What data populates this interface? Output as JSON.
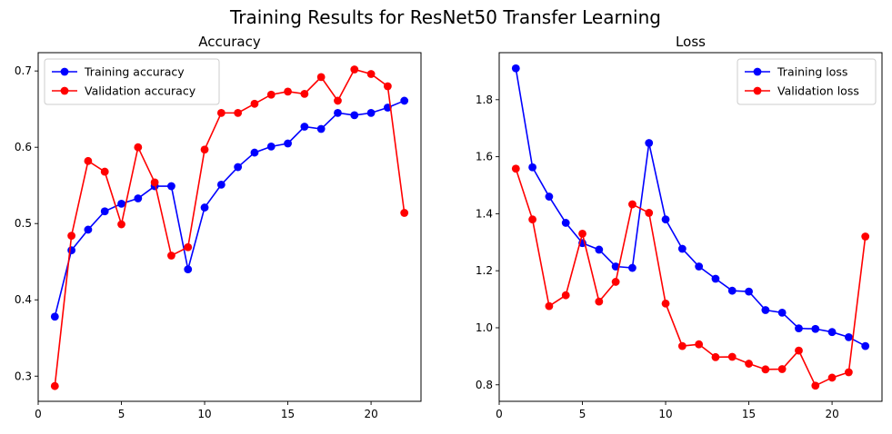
{
  "figure": {
    "title": "Training Results for ResNet50 Transfer Learning"
  },
  "chart_data": [
    {
      "type": "line",
      "title": "Accuracy",
      "xlabel": "",
      "ylabel": "",
      "xlim": [
        0,
        23
      ],
      "ylim": [
        0.267,
        0.724
      ],
      "xticks": [
        0,
        5,
        10,
        15,
        20
      ],
      "yticks": [
        0.3,
        0.4,
        0.5,
        0.6,
        0.7
      ],
      "legend": "upper-left",
      "grid": false,
      "x": [
        1,
        2,
        3,
        4,
        5,
        6,
        7,
        8,
        9,
        10,
        11,
        12,
        13,
        14,
        15,
        16,
        17,
        18,
        19,
        20,
        21,
        22
      ],
      "series": [
        {
          "name": "Training accuracy",
          "color": "#0000ff",
          "values": [
            0.378,
            0.465,
            0.492,
            0.516,
            0.526,
            0.533,
            0.549,
            0.549,
            0.44,
            0.521,
            0.551,
            0.574,
            0.593,
            0.601,
            0.605,
            0.627,
            0.624,
            0.645,
            0.642,
            0.645,
            0.652,
            0.661
          ]
        },
        {
          "name": "Validation accuracy",
          "color": "#ff0000",
          "values": [
            0.287,
            0.484,
            0.582,
            0.568,
            0.499,
            0.6,
            0.554,
            0.458,
            0.469,
            0.597,
            0.645,
            0.645,
            0.657,
            0.669,
            0.673,
            0.67,
            0.692,
            0.661,
            0.702,
            0.696,
            0.68,
            0.514
          ]
        }
      ]
    },
    {
      "type": "line",
      "title": "Loss",
      "xlabel": "",
      "ylabel": "",
      "xlim": [
        0,
        23
      ],
      "ylim": [
        0.742,
        1.965
      ],
      "xticks": [
        0,
        5,
        10,
        15,
        20
      ],
      "yticks": [
        0.8,
        1.0,
        1.2,
        1.4,
        1.6,
        1.8
      ],
      "legend": "upper-right",
      "grid": false,
      "x": [
        1,
        2,
        3,
        4,
        5,
        6,
        7,
        8,
        9,
        10,
        11,
        12,
        13,
        14,
        15,
        16,
        17,
        18,
        19,
        20,
        21,
        22
      ],
      "series": [
        {
          "name": "Training loss",
          "color": "#0000ff",
          "values": [
            1.91,
            1.563,
            1.46,
            1.368,
            1.297,
            1.274,
            1.215,
            1.21,
            1.648,
            1.38,
            1.277,
            1.215,
            1.172,
            1.13,
            1.127,
            1.062,
            1.053,
            0.998,
            0.996,
            0.985,
            0.967,
            0.936
          ]
        },
        {
          "name": "Validation loss",
          "color": "#ff0000",
          "values": [
            1.558,
            1.38,
            1.076,
            1.114,
            1.33,
            1.092,
            1.161,
            1.433,
            1.403,
            1.085,
            0.936,
            0.942,
            0.897,
            0.898,
            0.874,
            0.854,
            0.855,
            0.92,
            0.797,
            0.825,
            0.844,
            1.32
          ]
        }
      ]
    }
  ]
}
